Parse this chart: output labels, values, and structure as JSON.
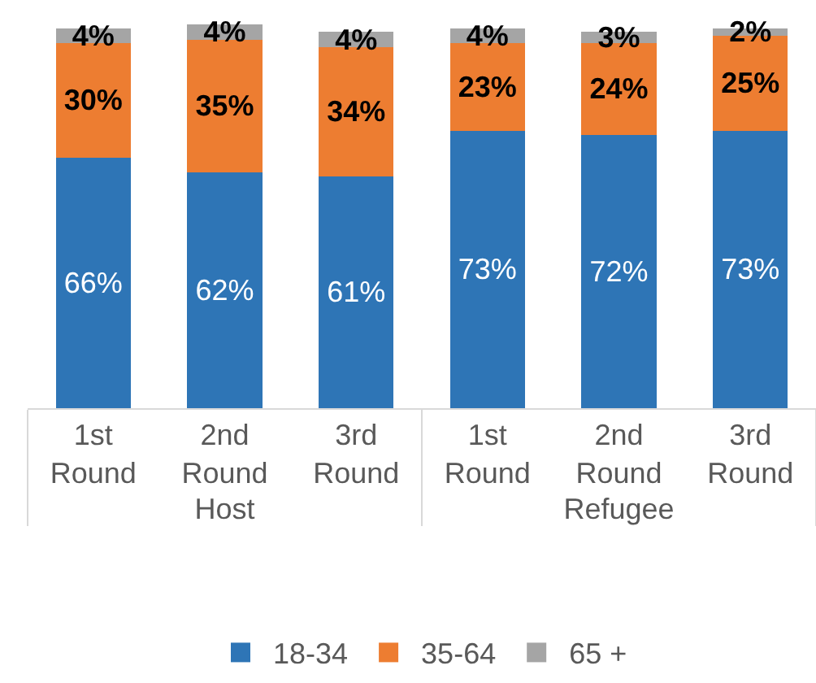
{
  "chart_data": {
    "type": "bar",
    "stacked": true,
    "categories": [
      "1st Round",
      "2nd Round",
      "3rd Round",
      "1st Round",
      "2nd Round",
      "3rd Round"
    ],
    "annotations": [
      "Host",
      "Refugee"
    ],
    "series": [
      {
        "name": "18-34",
        "color": "#2e75b6",
        "values": [
          66,
          62,
          61,
          73,
          72,
          73
        ],
        "value_labels": [
          "66%",
          "62%",
          "61%",
          "73%",
          "72%",
          "73%"
        ]
      },
      {
        "name": "35-64",
        "color": "#ed7d31",
        "values": [
          30,
          35,
          34,
          23,
          24,
          25
        ],
        "value_labels": [
          "30%",
          "35%",
          "34%",
          "23%",
          "24%",
          "25%"
        ]
      },
      {
        "name": "65 +",
        "color": "#a5a5a5",
        "values": [
          4,
          4,
          4,
          4,
          3,
          2
        ],
        "value_labels": [
          "4%",
          "4%",
          "4%",
          "4%",
          "3%",
          "2%"
        ]
      }
    ],
    "legend": "bottom",
    "tick_labels": "x",
    "grid": false
  }
}
